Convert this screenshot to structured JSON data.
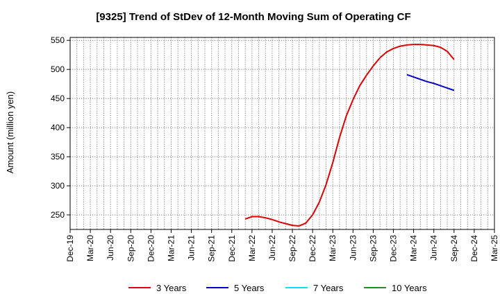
{
  "chart_data": {
    "type": "line",
    "title": "[9325]  Trend of StDev of 12-Month Moving Sum of Operating CF",
    "ylabel": "Amount (million yen)",
    "xlabel": "",
    "ylim": [
      225,
      555
    ],
    "yticks": [
      250,
      300,
      350,
      400,
      450,
      500,
      550
    ],
    "x_range": [
      "Dec-19",
      "Mar-25"
    ],
    "xticks": [
      "Dec-19",
      "Mar-20",
      "Jun-20",
      "Sep-20",
      "Dec-20",
      "Mar-21",
      "Jun-21",
      "Sep-21",
      "Dec-21",
      "Mar-22",
      "Jun-22",
      "Sep-22",
      "Dec-22",
      "Mar-23",
      "Jun-23",
      "Sep-23",
      "Dec-23",
      "Mar-24",
      "Jun-24",
      "Sep-24",
      "Dec-24",
      "Mar-25"
    ],
    "grid": true,
    "legend_position": "bottom",
    "series": [
      {
        "name": "3 Years",
        "color": "#dd0000",
        "points": [
          [
            "Feb-22",
            243
          ],
          [
            "Mar-22",
            247
          ],
          [
            "Apr-22",
            247
          ],
          [
            "May-22",
            245
          ],
          [
            "Jun-22",
            242
          ],
          [
            "Jul-22",
            238
          ],
          [
            "Aug-22",
            235
          ],
          [
            "Sep-22",
            232
          ],
          [
            "Oct-22",
            231
          ],
          [
            "Nov-22",
            236
          ],
          [
            "Dec-22",
            250
          ],
          [
            "Jan-23",
            272
          ],
          [
            "Feb-23",
            302
          ],
          [
            "Mar-23",
            340
          ],
          [
            "Apr-23",
            383
          ],
          [
            "May-23",
            420
          ],
          [
            "Jun-23",
            448
          ],
          [
            "Jul-23",
            472
          ],
          [
            "Aug-23",
            490
          ],
          [
            "Sep-23",
            506
          ],
          [
            "Oct-23",
            520
          ],
          [
            "Nov-23",
            530
          ],
          [
            "Dec-23",
            536
          ],
          [
            "Jan-24",
            540
          ],
          [
            "Feb-24",
            542
          ],
          [
            "Mar-24",
            543
          ],
          [
            "Apr-24",
            543
          ],
          [
            "May-24",
            542
          ],
          [
            "Jun-24",
            541
          ],
          [
            "Jul-24",
            538
          ],
          [
            "Aug-24",
            531
          ],
          [
            "Sep-24",
            517
          ]
        ]
      },
      {
        "name": "5 Years",
        "color": "#0000cc",
        "points": [
          [
            "Feb-24",
            491
          ],
          [
            "Mar-24",
            487
          ],
          [
            "Apr-24",
            483
          ],
          [
            "May-24",
            479
          ],
          [
            "Jun-24",
            476
          ],
          [
            "Jul-24",
            472
          ],
          [
            "Aug-24",
            468
          ],
          [
            "Sep-24",
            464
          ]
        ]
      },
      {
        "name": "7 Years",
        "color": "#00e5ee",
        "points": []
      },
      {
        "name": "10 Years",
        "color": "#228b22",
        "points": []
      }
    ]
  }
}
